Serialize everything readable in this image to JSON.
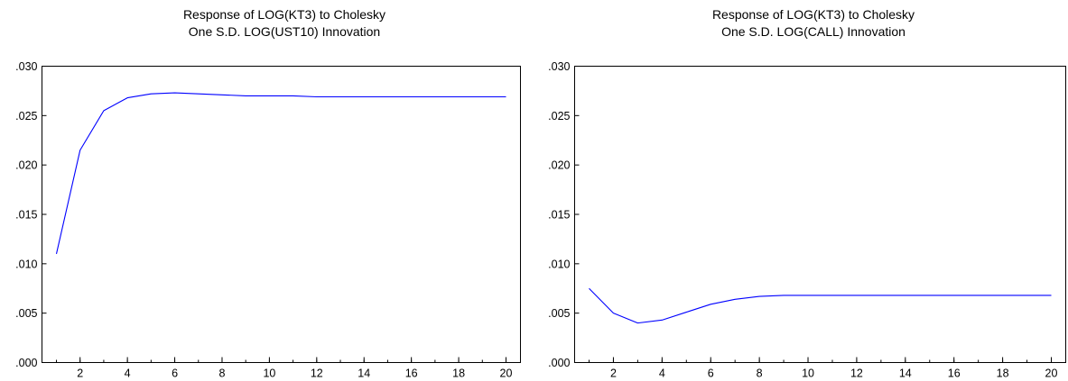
{
  "chart_data": [
    {
      "type": "line",
      "title": "Response of LOG(KT3) to Cholesky",
      "subtitle": "One S.D. LOG(UST10) Innovation",
      "xlabel": "",
      "ylabel": "",
      "xlim": [
        1,
        20
      ],
      "ylim": [
        0,
        0.03
      ],
      "x_ticks": [
        2,
        4,
        6,
        8,
        10,
        12,
        14,
        16,
        18,
        20
      ],
      "x_tick_labels": [
        "2",
        "4",
        "6",
        "8",
        "10",
        "12",
        "14",
        "16",
        "18",
        "20"
      ],
      "y_ticks": [
        0,
        0.005,
        0.01,
        0.015,
        0.02,
        0.025,
        0.03
      ],
      "y_tick_labels": [
        ".000",
        ".005",
        ".010",
        ".015",
        ".020",
        ".025",
        ".030"
      ],
      "grid": false,
      "legend": "none",
      "line_color": "#0000ff",
      "x": [
        1,
        2,
        3,
        4,
        5,
        6,
        7,
        8,
        9,
        10,
        11,
        12,
        13,
        14,
        15,
        16,
        17,
        18,
        19,
        20
      ],
      "series": [
        {
          "values": [
            0.011,
            0.0215,
            0.0255,
            0.0268,
            0.0272,
            0.0273,
            0.0272,
            0.0271,
            0.027,
            0.027,
            0.027,
            0.0269,
            0.0269,
            0.0269,
            0.0269,
            0.0269,
            0.0269,
            0.0269,
            0.0269,
            0.0269
          ]
        }
      ]
    },
    {
      "type": "line",
      "title": "Response of LOG(KT3) to Cholesky",
      "subtitle": "One S.D. LOG(CALL) Innovation",
      "xlabel": "",
      "ylabel": "",
      "xlim": [
        1,
        20
      ],
      "ylim": [
        0,
        0.03
      ],
      "x_ticks": [
        2,
        4,
        6,
        8,
        10,
        12,
        14,
        16,
        18,
        20
      ],
      "x_tick_labels": [
        "2",
        "4",
        "6",
        "8",
        "10",
        "12",
        "14",
        "16",
        "18",
        "20"
      ],
      "y_ticks": [
        0,
        0.005,
        0.01,
        0.015,
        0.02,
        0.025,
        0.03
      ],
      "y_tick_labels": [
        ".000",
        ".005",
        ".010",
        ".015",
        ".020",
        ".025",
        ".030"
      ],
      "grid": false,
      "legend": "none",
      "line_color": "#0000ff",
      "x": [
        1,
        2,
        3,
        4,
        5,
        6,
        7,
        8,
        9,
        10,
        11,
        12,
        13,
        14,
        15,
        16,
        17,
        18,
        19,
        20
      ],
      "series": [
        {
          "values": [
            0.0075,
            0.005,
            0.004,
            0.0043,
            0.0051,
            0.0059,
            0.0064,
            0.0067,
            0.0068,
            0.0068,
            0.0068,
            0.0068,
            0.0068,
            0.0068,
            0.0068,
            0.0068,
            0.0068,
            0.0068,
            0.0068,
            0.0068
          ]
        }
      ]
    }
  ]
}
